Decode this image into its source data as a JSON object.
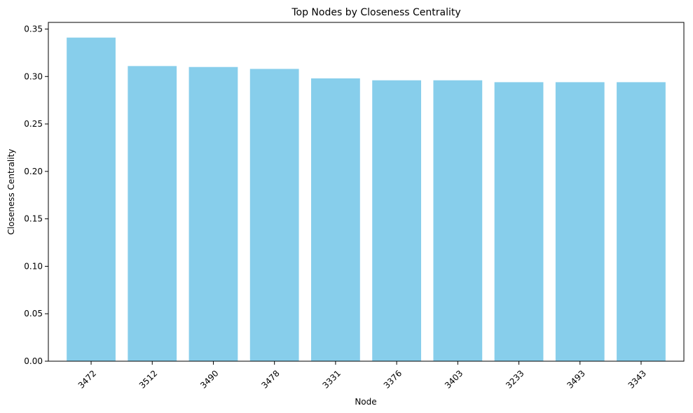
{
  "chart_data": {
    "type": "bar",
    "title": "Top Nodes by Closeness Centrality",
    "xlabel": "Node",
    "ylabel": "Closeness Centrality",
    "categories": [
      "3472",
      "3512",
      "3490",
      "3478",
      "3331",
      "3376",
      "3403",
      "3233",
      "3493",
      "3343"
    ],
    "values": [
      0.341,
      0.311,
      0.31,
      0.308,
      0.298,
      0.296,
      0.296,
      0.294,
      0.294,
      0.294
    ],
    "ylim": [
      0,
      0.357
    ],
    "yticks": [
      "0.00",
      "0.05",
      "0.10",
      "0.15",
      "0.20",
      "0.25",
      "0.30",
      "0.35"
    ],
    "ytick_values": [
      0,
      0.05,
      0.1,
      0.15,
      0.2,
      0.25,
      0.3,
      0.35
    ],
    "bar_color": "#87CEEB",
    "grid": false,
    "legend": false,
    "xtick_rotation": 45
  }
}
